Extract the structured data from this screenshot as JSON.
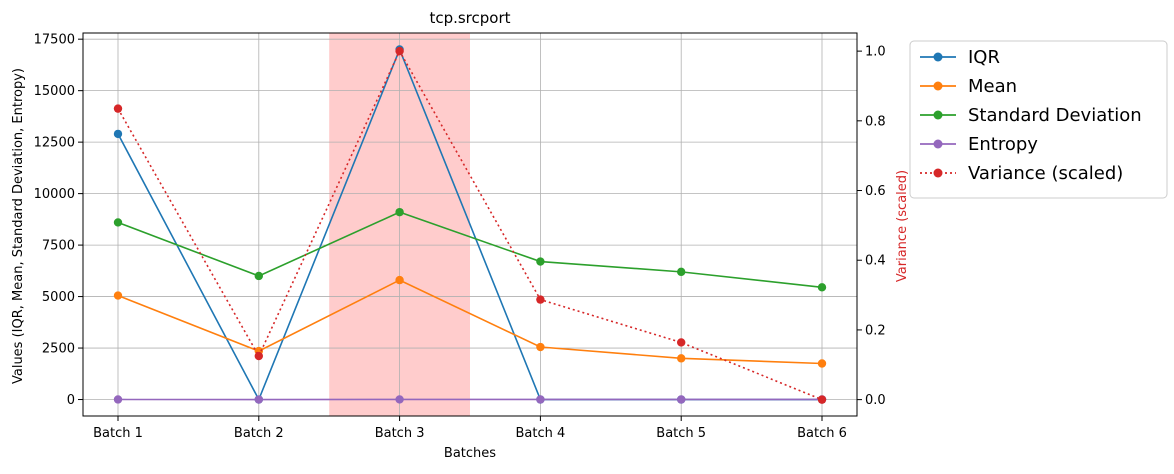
{
  "chart_data": {
    "type": "line",
    "title": "tcp.srcport",
    "xlabel": "Batches",
    "ylabel": "Values (IQR, Mean, Standard Deviation, Entropy)",
    "y2label": "Variance (scaled)",
    "categories": [
      "Batch 1",
      "Batch 2",
      "Batch 3",
      "Batch 4",
      "Batch 5",
      "Batch 6"
    ],
    "ylim": [
      -800,
      17800
    ],
    "yticks": [
      0,
      2500,
      5000,
      7500,
      10000,
      12500,
      15000,
      17500
    ],
    "y2lim": [
      -0.047,
      1.052
    ],
    "y2ticks": [
      0.0,
      0.2,
      0.4,
      0.6,
      0.8,
      1.0
    ],
    "grid": true,
    "legend_position": "outside-top-right",
    "highlight_band": {
      "from_category": "Batch 3",
      "span": 1.0,
      "color": "#ff9999"
    },
    "series": [
      {
        "name": "IQR",
        "axis": "left",
        "color": "#1f77b4",
        "style": "solid",
        "values": [
          12900,
          0,
          17000,
          0,
          0,
          0
        ]
      },
      {
        "name": "Mean",
        "axis": "left",
        "color": "#ff7f0e",
        "style": "solid",
        "values": [
          5050,
          2350,
          5800,
          2550,
          2000,
          1750
        ]
      },
      {
        "name": "Standard Deviation",
        "axis": "left",
        "color": "#2ca02c",
        "style": "solid",
        "values": [
          8600,
          6000,
          9100,
          6700,
          6200,
          5450
        ]
      },
      {
        "name": "Entropy",
        "axis": "left",
        "color": "#9467bd",
        "style": "solid",
        "values": [
          2,
          0,
          3,
          2,
          2,
          2
        ]
      },
      {
        "name": "Variance (scaled)",
        "axis": "right",
        "color": "#d62728",
        "style": "dotted",
        "values": [
          0.835,
          0.125,
          1.0,
          0.287,
          0.164,
          0.0
        ]
      }
    ]
  }
}
